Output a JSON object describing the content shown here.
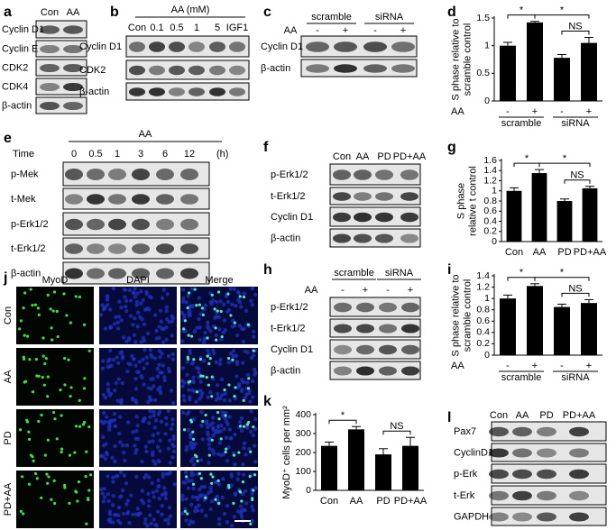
{
  "panels": [
    {
      "letter": "a",
      "lanes": [
        "Con",
        "AA"
      ],
      "rows": [
        "Cyclin D1",
        "Cyclin E",
        "CDK2",
        "CDK4",
        "β-actin"
      ]
    },
    {
      "letter": "b",
      "group": "AA (mM)",
      "lanes": [
        "Con",
        "0.1",
        "0.5",
        "1",
        "5",
        "IGF1"
      ],
      "rows": [
        "Cyclin D1",
        "CDK2",
        "β-actin"
      ]
    },
    {
      "letter": "c",
      "groups": [
        "scramble",
        "siRNA"
      ],
      "treatment": "AA",
      "lanes": [
        "-",
        "+",
        "-",
        "+"
      ],
      "rows": [
        "Cyclin D1",
        "β-actin"
      ]
    },
    {
      "letter": "e",
      "group": "AA",
      "lane_title": "Time",
      "lanes": [
        "0",
        "0.5",
        "1",
        "3",
        "6",
        "12"
      ],
      "unit": "(h)",
      "rows": [
        "p-Mek",
        "t-Mek",
        "p-Erk1/2",
        "t-Erk1/2",
        "β-actin"
      ]
    },
    {
      "letter": "f",
      "lanes": [
        "Con",
        "AA",
        "PD",
        "PD+AA"
      ],
      "rows": [
        "p-Erk1/2",
        "t-Erk1/2",
        "Cyclin D1",
        "β-actin"
      ]
    },
    {
      "letter": "h",
      "groups": [
        "scramble",
        "siRNA"
      ],
      "treatment": "AA",
      "lanes": [
        "-",
        "+",
        "-",
        "+"
      ],
      "rows": [
        "p-Erk1/2",
        "t-Erk1/2",
        "Cyclin D1",
        "β-actin"
      ]
    },
    {
      "letter": "l",
      "lanes": [
        "Con",
        "AA",
        "PD",
        "PD+AA"
      ],
      "rows": [
        "Pax7",
        "CyclinD1",
        "p-Erk",
        "t-Erk",
        "GAPDH"
      ]
    }
  ],
  "images": {
    "letter": "j",
    "channels": [
      "MyoD",
      "DAPI",
      "Merge"
    ],
    "rows": [
      "Con",
      "AA",
      "PD",
      "PD+AA"
    ]
  },
  "chart_data": [
    {
      "type": "bar",
      "letter": "d",
      "ylabel": [
        "S phase relative to",
        "scramble control"
      ],
      "treatment": "AA",
      "categories": [
        "-",
        "+",
        "-",
        "+"
      ],
      "groups": [
        "scramble",
        "siRNA"
      ],
      "values": [
        1.0,
        1.42,
        0.78,
        1.05
      ],
      "errors": [
        0.06,
        0.02,
        0.06,
        0.1
      ],
      "ylim": [
        0,
        1.5
      ],
      "yticks": [
        0,
        0.5,
        1,
        1.5
      ],
      "annotations": [
        "*",
        "*",
        "NS"
      ],
      "color": "#000000"
    },
    {
      "type": "bar",
      "letter": "g",
      "ylabel": [
        "S phase",
        "relative t control"
      ],
      "categories": [
        "Con",
        "AA",
        "PD",
        "PD+AA"
      ],
      "values": [
        1.0,
        1.35,
        0.8,
        1.05
      ],
      "errors": [
        0.06,
        0.07,
        0.04,
        0.04
      ],
      "ylim": [
        0,
        1.6
      ],
      "yticks": [
        0,
        0.2,
        0.4,
        0.6,
        0.8,
        1,
        1.2,
        1.4,
        1.6
      ],
      "annotations": [
        "*",
        "*",
        "NS"
      ],
      "color": "#000000"
    },
    {
      "type": "bar",
      "letter": "i",
      "ylabel": [
        "S phase relative to",
        "scramble control"
      ],
      "treatment": "AA",
      "categories": [
        "-",
        "+",
        "-",
        "+"
      ],
      "groups": [
        "scramble",
        "siRNA"
      ],
      "values": [
        1.0,
        1.22,
        0.85,
        0.92
      ],
      "errors": [
        0.06,
        0.04,
        0.05,
        0.06
      ],
      "ylim": [
        0,
        1.4
      ],
      "yticks": [
        0,
        0.2,
        0.4,
        0.6,
        0.8,
        1,
        1.2,
        1.4
      ],
      "annotations": [
        "*",
        "*",
        "NS"
      ],
      "color": "#000000"
    },
    {
      "type": "bar",
      "letter": "k",
      "ylabel": [
        "MyoD⁺ cells per mm²"
      ],
      "categories": [
        "Con",
        "AA",
        "PD",
        "PD+AA"
      ],
      "values": [
        235,
        322,
        190,
        235
      ],
      "errors": [
        20,
        15,
        30,
        45
      ],
      "ylim": [
        0,
        400
      ],
      "yticks": [
        0,
        100,
        200,
        300,
        400
      ],
      "annotations": [
        "*",
        "NS"
      ],
      "color": "#000000"
    }
  ]
}
